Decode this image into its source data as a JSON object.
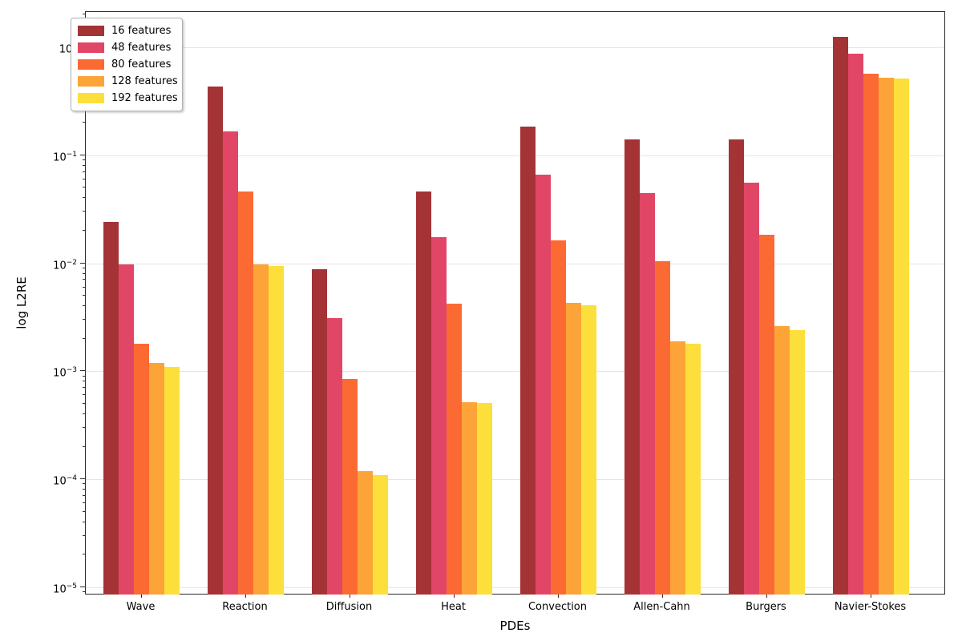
{
  "chart_data": {
    "type": "bar",
    "title": "",
    "xlabel": "PDEs",
    "ylabel": "log L2RE",
    "yscale": "log",
    "ylim": [
      8.6e-06,
      2.1
    ],
    "ytick_exponents": [
      0,
      -1,
      -2,
      -3,
      -4,
      -5
    ],
    "grid": "major-y horizontal, light gray",
    "legend_position": "upper left",
    "categories": [
      "Wave",
      "Reaction",
      "Diffusion",
      "Heat",
      "Convection",
      "Allen-Cahn",
      "Burgers",
      "Navier-Stokes"
    ],
    "series": [
      {
        "name": "16 features",
        "color": "#A43335",
        "values": [
          0.024,
          0.43,
          0.0088,
          0.046,
          0.185,
          0.14,
          0.14,
          1.25
        ]
      },
      {
        "name": "48 features",
        "color": "#E14667",
        "values": [
          0.0097,
          0.165,
          0.0031,
          0.0175,
          0.066,
          0.045,
          0.056,
          0.87
        ]
      },
      {
        "name": "80 features",
        "color": "#FC6A33",
        "values": [
          0.0018,
          0.046,
          0.00085,
          0.0042,
          0.0163,
          0.0105,
          0.0185,
          0.57
        ]
      },
      {
        "name": "128 features",
        "color": "#FCA437",
        "values": [
          0.0012,
          0.0097,
          0.00012,
          0.00052,
          0.0043,
          0.0019,
          0.0026,
          0.52
        ]
      },
      {
        "name": "192 features",
        "color": "#FCDF3B",
        "values": [
          0.0011,
          0.0095,
          0.00011,
          0.00051,
          0.0041,
          0.0018,
          0.0024,
          0.51
        ]
      }
    ]
  }
}
